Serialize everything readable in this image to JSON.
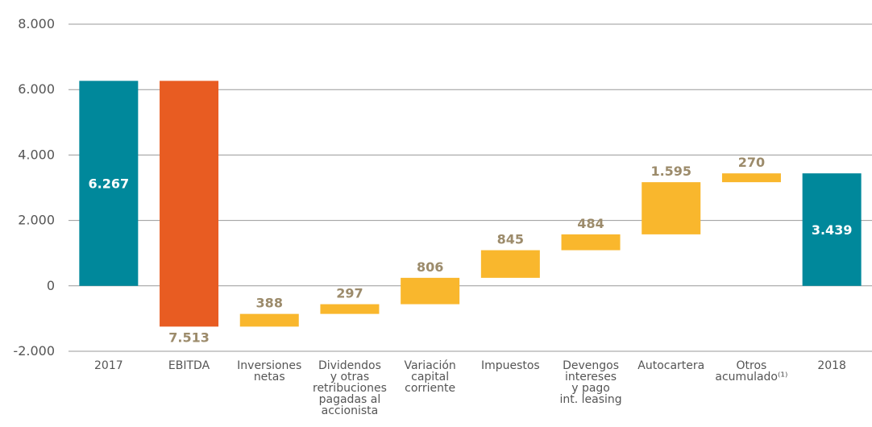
{
  "chart_data": {
    "type": "waterfall",
    "categories": [
      [
        "2017"
      ],
      [
        "EBITDA"
      ],
      [
        "Inversiones",
        "netas"
      ],
      [
        "Dividendos",
        "y otras",
        "retribuciones",
        "pagadas al",
        "accionista"
      ],
      [
        "Variación",
        "capital",
        "corriente"
      ],
      [
        "Impuestos"
      ],
      [
        "Devengos",
        "intereses",
        "y pago",
        "int. leasing"
      ],
      [
        "Autocartera"
      ],
      [
        "Otros",
        "acumulado⁽¹⁾"
      ],
      [
        "2018"
      ]
    ],
    "measure": [
      "total",
      "relative",
      "relative",
      "relative",
      "relative",
      "relative",
      "relative",
      "relative",
      "relative",
      "total"
    ],
    "values": [
      6267,
      -7513,
      388,
      297,
      806,
      845,
      484,
      1595,
      270,
      3439
    ],
    "value_labels": [
      "6.267",
      "7.513",
      "388",
      "297",
      "806",
      "845",
      "484",
      "1.595",
      "270",
      "3.439"
    ],
    "colors": [
      "#00889b",
      "#e85c22",
      "#f9b72d",
      "#f9b72d",
      "#f9b72d",
      "#f9b72d",
      "#f9b72d",
      "#f9b72d",
      "#f9b72d",
      "#00889b"
    ],
    "ylim": [
      -2000,
      8000
    ],
    "yticks": [
      {
        "value": -2000,
        "label": "-2.000"
      },
      0,
      {
        "value": 2000,
        "label": "2.000"
      },
      {
        "value": 4000,
        "label": "4.000"
      },
      {
        "value": 6000,
        "label": "6.000"
      },
      {
        "value": 8000,
        "label": "8.000"
      }
    ],
    "grid": true
  }
}
